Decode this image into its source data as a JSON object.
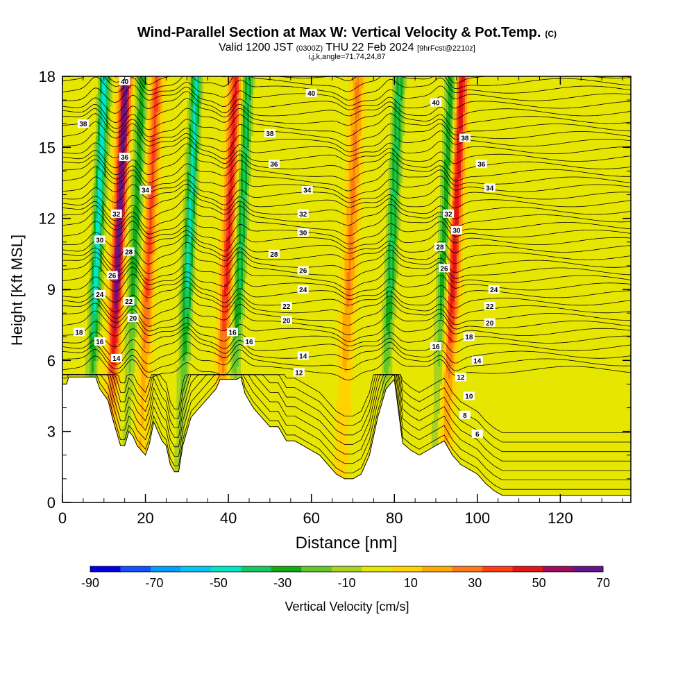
{
  "title": {
    "main": "Wind-Parallel Section at Max W: Vertical Velocity & Pot.Temp.",
    "copyright": "(C)",
    "valid_prefix": "Valid 1200 JST",
    "valid_zone": "(0300Z)",
    "valid_date": "THU 22 Feb 2024",
    "forecast": "[9hrFcst@2210z]",
    "indices": "i,j,k,angle=71,74,24,87"
  },
  "chart_data": {
    "type": "heatmap",
    "xlabel": "Distance [nm]",
    "ylabel": "Height [Kft MSL]",
    "xlim": [
      0,
      137
    ],
    "ylim": [
      0,
      18
    ],
    "x_ticks": [
      0,
      20,
      40,
      60,
      80,
      100,
      120
    ],
    "y_ticks": [
      0,
      3,
      6,
      9,
      12,
      15,
      18
    ],
    "colorbar": {
      "label": "Vertical Velocity [cm/s]",
      "min": -90,
      "max": 70,
      "step": 10,
      "tick_labels": [
        -90,
        -70,
        -50,
        -30,
        -10,
        10,
        30,
        50,
        70
      ],
      "colors": [
        "#0000e6",
        "#1450ff",
        "#00a0ff",
        "#00c8f0",
        "#00e6c8",
        "#14c864",
        "#14aa14",
        "#64c828",
        "#aad21e",
        "#e6e600",
        "#ffd200",
        "#ffaa00",
        "#ff7814",
        "#ff3c14",
        "#e61414",
        "#a00a5a",
        "#64148c"
      ]
    },
    "terrain_top_kft": [
      [
        0,
        5.0
      ],
      [
        1,
        5.0
      ],
      [
        1.5,
        5.3
      ],
      [
        6,
        5.3
      ],
      [
        6,
        5.3
      ],
      [
        8,
        5.3
      ],
      [
        9,
        4.8
      ],
      [
        11,
        4.3
      ],
      [
        12,
        3.6
      ],
      [
        13,
        3.0
      ],
      [
        14,
        2.4
      ],
      [
        15,
        2.4
      ],
      [
        16,
        3.0
      ],
      [
        17,
        2.8
      ],
      [
        18,
        2.4
      ],
      [
        19,
        2.2
      ],
      [
        20,
        2.0
      ],
      [
        21,
        2.5
      ],
      [
        22,
        3.4
      ],
      [
        23,
        3.0
      ],
      [
        24,
        2.6
      ],
      [
        25,
        2.4
      ],
      [
        26,
        1.6
      ],
      [
        27,
        1.3
      ],
      [
        28,
        1.3
      ],
      [
        29,
        2.4
      ],
      [
        30,
        3.0
      ],
      [
        31,
        3.6
      ],
      [
        33,
        4.0
      ],
      [
        35,
        4.4
      ],
      [
        37,
        4.8
      ],
      [
        38,
        5.2
      ],
      [
        40,
        5.2
      ],
      [
        42,
        5.2
      ],
      [
        43,
        5.3
      ],
      [
        44,
        4.6
      ],
      [
        46,
        4.0
      ],
      [
        48,
        3.6
      ],
      [
        50,
        3.2
      ],
      [
        52,
        3.2
      ],
      [
        54,
        2.6
      ],
      [
        56,
        2.6
      ],
      [
        58,
        2.4
      ],
      [
        60,
        2.2
      ],
      [
        62,
        2.0
      ],
      [
        64,
        1.6
      ],
      [
        66,
        1.2
      ],
      [
        68,
        1.0
      ],
      [
        70,
        1.0
      ],
      [
        72,
        1.2
      ],
      [
        74,
        2.0
      ],
      [
        76,
        3.6
      ],
      [
        77,
        4.2
      ],
      [
        78,
        4.8
      ],
      [
        79,
        5.0
      ],
      [
        80,
        5.2
      ],
      [
        82,
        2.5
      ],
      [
        84,
        2.2
      ],
      [
        86,
        2.0
      ],
      [
        88,
        2.2
      ],
      [
        90,
        2.4
      ],
      [
        92,
        2.6
      ],
      [
        94,
        2.0
      ],
      [
        96,
        1.6
      ],
      [
        98,
        1.4
      ],
      [
        100,
        1.2
      ],
      [
        102,
        0.8
      ],
      [
        104,
        0.5
      ],
      [
        106,
        0.3
      ],
      [
        137,
        0.3
      ]
    ],
    "updraft_cores": [
      {
        "x": 13.0,
        "w": 70
      },
      {
        "x": 39.5,
        "w": 45
      },
      {
        "x": 94.0,
        "w": 50
      },
      {
        "x": 20.5,
        "w": 35
      },
      {
        "x": 69.0,
        "w": 25
      }
    ],
    "downdraft_cores": [
      {
        "x": 8.0,
        "w": -55
      },
      {
        "x": 17.0,
        "w": -35
      },
      {
        "x": 42.5,
        "w": -40
      },
      {
        "x": 79.0,
        "w": -40
      },
      {
        "x": 91.5,
        "w": -35
      },
      {
        "x": 30.0,
        "w": -50
      }
    ],
    "theta_label_values": [
      6,
      8,
      10,
      12,
      14,
      16,
      18,
      20,
      22,
      24,
      26,
      28,
      30,
      32,
      34,
      36,
      38,
      40
    ],
    "theta_contour_labels": [
      {
        "x": 15,
        "y": 17.8,
        "v": "40"
      },
      {
        "x": 60,
        "y": 17.3,
        "v": "40"
      },
      {
        "x": 90,
        "y": 16.9,
        "v": "40"
      },
      {
        "x": 5,
        "y": 16.0,
        "v": "38"
      },
      {
        "x": 50,
        "y": 15.6,
        "v": "38"
      },
      {
        "x": 97,
        "y": 15.4,
        "v": "38"
      },
      {
        "x": 15,
        "y": 14.6,
        "v": "36"
      },
      {
        "x": 51,
        "y": 14.3,
        "v": "36"
      },
      {
        "x": 101,
        "y": 14.3,
        "v": "36"
      },
      {
        "x": 20,
        "y": 13.2,
        "v": "34"
      },
      {
        "x": 59,
        "y": 13.2,
        "v": "34"
      },
      {
        "x": 103,
        "y": 13.3,
        "v": "34"
      },
      {
        "x": 13,
        "y": 12.2,
        "v": "32"
      },
      {
        "x": 58,
        "y": 12.2,
        "v": "32"
      },
      {
        "x": 93,
        "y": 12.2,
        "v": "32"
      },
      {
        "x": 9,
        "y": 11.1,
        "v": "30"
      },
      {
        "x": 58,
        "y": 11.4,
        "v": "30"
      },
      {
        "x": 95,
        "y": 11.5,
        "v": "30"
      },
      {
        "x": 16,
        "y": 10.6,
        "v": "28"
      },
      {
        "x": 51,
        "y": 10.5,
        "v": "28"
      },
      {
        "x": 91,
        "y": 10.8,
        "v": "28"
      },
      {
        "x": 12,
        "y": 9.6,
        "v": "26"
      },
      {
        "x": 58,
        "y": 9.8,
        "v": "26"
      },
      {
        "x": 92,
        "y": 9.9,
        "v": "26"
      },
      {
        "x": 9,
        "y": 8.8,
        "v": "24"
      },
      {
        "x": 58,
        "y": 9.0,
        "v": "24"
      },
      {
        "x": 104,
        "y": 9.0,
        "v": "24"
      },
      {
        "x": 16,
        "y": 8.5,
        "v": "22"
      },
      {
        "x": 54,
        "y": 8.3,
        "v": "22"
      },
      {
        "x": 103,
        "y": 8.3,
        "v": "22"
      },
      {
        "x": 17,
        "y": 7.8,
        "v": "20"
      },
      {
        "x": 54,
        "y": 7.7,
        "v": "20"
      },
      {
        "x": 103,
        "y": 7.6,
        "v": "20"
      },
      {
        "x": 4,
        "y": 7.2,
        "v": "18"
      },
      {
        "x": 98,
        "y": 7.0,
        "v": "18"
      },
      {
        "x": 9,
        "y": 6.8,
        "v": "16"
      },
      {
        "x": 41,
        "y": 7.2,
        "v": "16"
      },
      {
        "x": 45,
        "y": 6.8,
        "v": "16"
      },
      {
        "x": 90,
        "y": 6.6,
        "v": "16"
      },
      {
        "x": 13,
        "y": 6.1,
        "v": "14"
      },
      {
        "x": 58,
        "y": 6.2,
        "v": "14"
      },
      {
        "x": 100,
        "y": 6.0,
        "v": "14"
      },
      {
        "x": 57,
        "y": 5.5,
        "v": "12"
      },
      {
        "x": 96,
        "y": 5.3,
        "v": "12"
      },
      {
        "x": 98,
        "y": 4.5,
        "v": "10"
      },
      {
        "x": 97,
        "y": 3.7,
        "v": "8"
      },
      {
        "x": 100,
        "y": 2.9,
        "v": "6"
      }
    ]
  }
}
